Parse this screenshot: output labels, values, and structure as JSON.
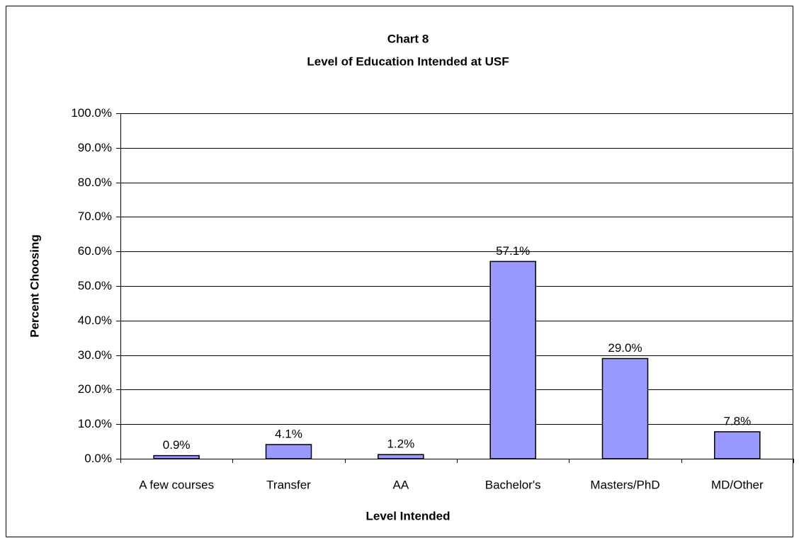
{
  "chart_data": {
    "type": "bar",
    "title": "Chart 8",
    "subtitle": "Level of Education Intended at USF",
    "x_label": "Level Intended",
    "y_label": "Percent Choosing",
    "categories": [
      "A few courses",
      "Transfer",
      "AA",
      "Bachelor's",
      "Masters/PhD",
      "MD/Other"
    ],
    "values": [
      0.9,
      4.1,
      1.2,
      57.1,
      29.0,
      7.8
    ],
    "value_labels": [
      "0.9%",
      "4.1%",
      "1.2%",
      "57.1%",
      "29.0%",
      "7.8%"
    ],
    "color": "#9999ff",
    "ylim": [
      0,
      100
    ],
    "yticks": [
      {
        "value": 0,
        "label": "0.0%"
      },
      {
        "value": 10,
        "label": "10.0%"
      },
      {
        "value": 20,
        "label": "20.0%"
      },
      {
        "value": 30,
        "label": "30.0%"
      },
      {
        "value": 40,
        "label": "40.0%"
      },
      {
        "value": 50,
        "label": "50.0%"
      },
      {
        "value": 60,
        "label": "60.0%"
      },
      {
        "value": 70,
        "label": "70.0%"
      },
      {
        "value": 80,
        "label": "80.0%"
      },
      {
        "value": 90,
        "label": "90.0%"
      },
      {
        "value": 100,
        "label": "100.0%"
      }
    ],
    "grid": true
  }
}
